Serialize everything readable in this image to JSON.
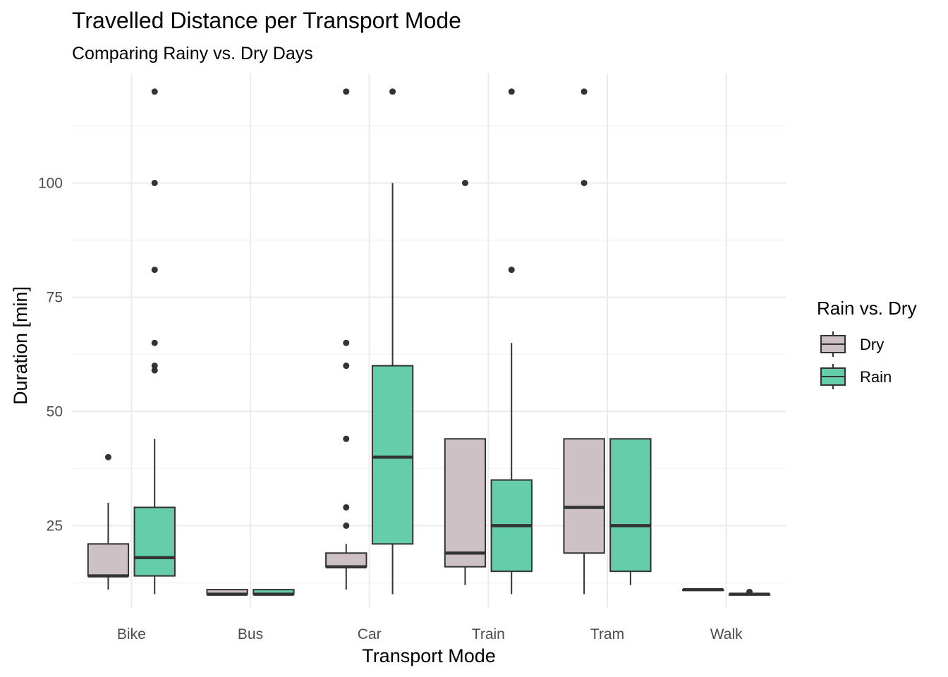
{
  "chart_data": {
    "type": "boxplot",
    "title": "Travelled Distance per Transport Mode",
    "subtitle": "Comparing Rainy vs. Dry Days",
    "xlabel": "Transport Mode",
    "ylabel": "Duration [min]",
    "ylim": [
      7,
      124
    ],
    "yticks": [
      25,
      50,
      75,
      100
    ],
    "categories": [
      "Bike",
      "Bus",
      "Car",
      "Train",
      "Tram",
      "Walk"
    ],
    "grid": true,
    "legend": {
      "title": "Rain vs. Dry",
      "placement": "right",
      "entries": [
        {
          "name": "Dry",
          "color": "#cdc1c5"
        },
        {
          "name": "Rain",
          "color": "#66cdaa"
        }
      ]
    },
    "series": [
      {
        "name": "Dry",
        "color": "#cdc1c5",
        "boxes": [
          {
            "category": "Bike",
            "min": 11,
            "q1": 14,
            "median": 14,
            "q3": 21,
            "max": 30,
            "outliers": [
              40
            ]
          },
          {
            "category": "Bus",
            "min": 10,
            "q1": 10,
            "median": 10,
            "q3": 11,
            "max": 11,
            "outliers": []
          },
          {
            "category": "Car",
            "min": 11,
            "q1": 16,
            "median": 16,
            "q3": 19,
            "max": 21,
            "outliers": [
              25,
              29,
              44,
              60,
              65,
              120
            ]
          },
          {
            "category": "Train",
            "min": 12,
            "q1": 16,
            "median": 19,
            "q3": 44,
            "max": 44,
            "outliers": [
              100
            ]
          },
          {
            "category": "Tram",
            "min": 10,
            "q1": 19,
            "median": 29,
            "q3": 44,
            "max": 44,
            "outliers": [
              100,
              120
            ]
          },
          {
            "category": "Walk",
            "min": 11,
            "q1": 11,
            "median": 11,
            "q3": 11,
            "max": 11,
            "outliers": []
          }
        ]
      },
      {
        "name": "Rain",
        "color": "#66cdaa",
        "boxes": [
          {
            "category": "Bike",
            "min": 10,
            "q1": 14,
            "median": 18,
            "q3": 29,
            "max": 44,
            "outliers": [
              59,
              60,
              65,
              81,
              100,
              120
            ]
          },
          {
            "category": "Bus",
            "min": 10,
            "q1": 10,
            "median": 10,
            "q3": 11,
            "max": 11,
            "outliers": []
          },
          {
            "category": "Car",
            "min": 10,
            "q1": 21,
            "median": 40,
            "q3": 60,
            "max": 100,
            "outliers": [
              120
            ]
          },
          {
            "category": "Train",
            "min": 10,
            "q1": 15,
            "median": 25,
            "q3": 35,
            "max": 65,
            "outliers": [
              81,
              120
            ]
          },
          {
            "category": "Tram",
            "min": 12,
            "q1": 15,
            "median": 25,
            "q3": 44,
            "max": 44,
            "outliers": []
          },
          {
            "category": "Walk",
            "min": 10,
            "q1": 10,
            "median": 10,
            "q3": 10,
            "max": 10,
            "outliers": [
              10.5
            ]
          }
        ]
      }
    ]
  }
}
